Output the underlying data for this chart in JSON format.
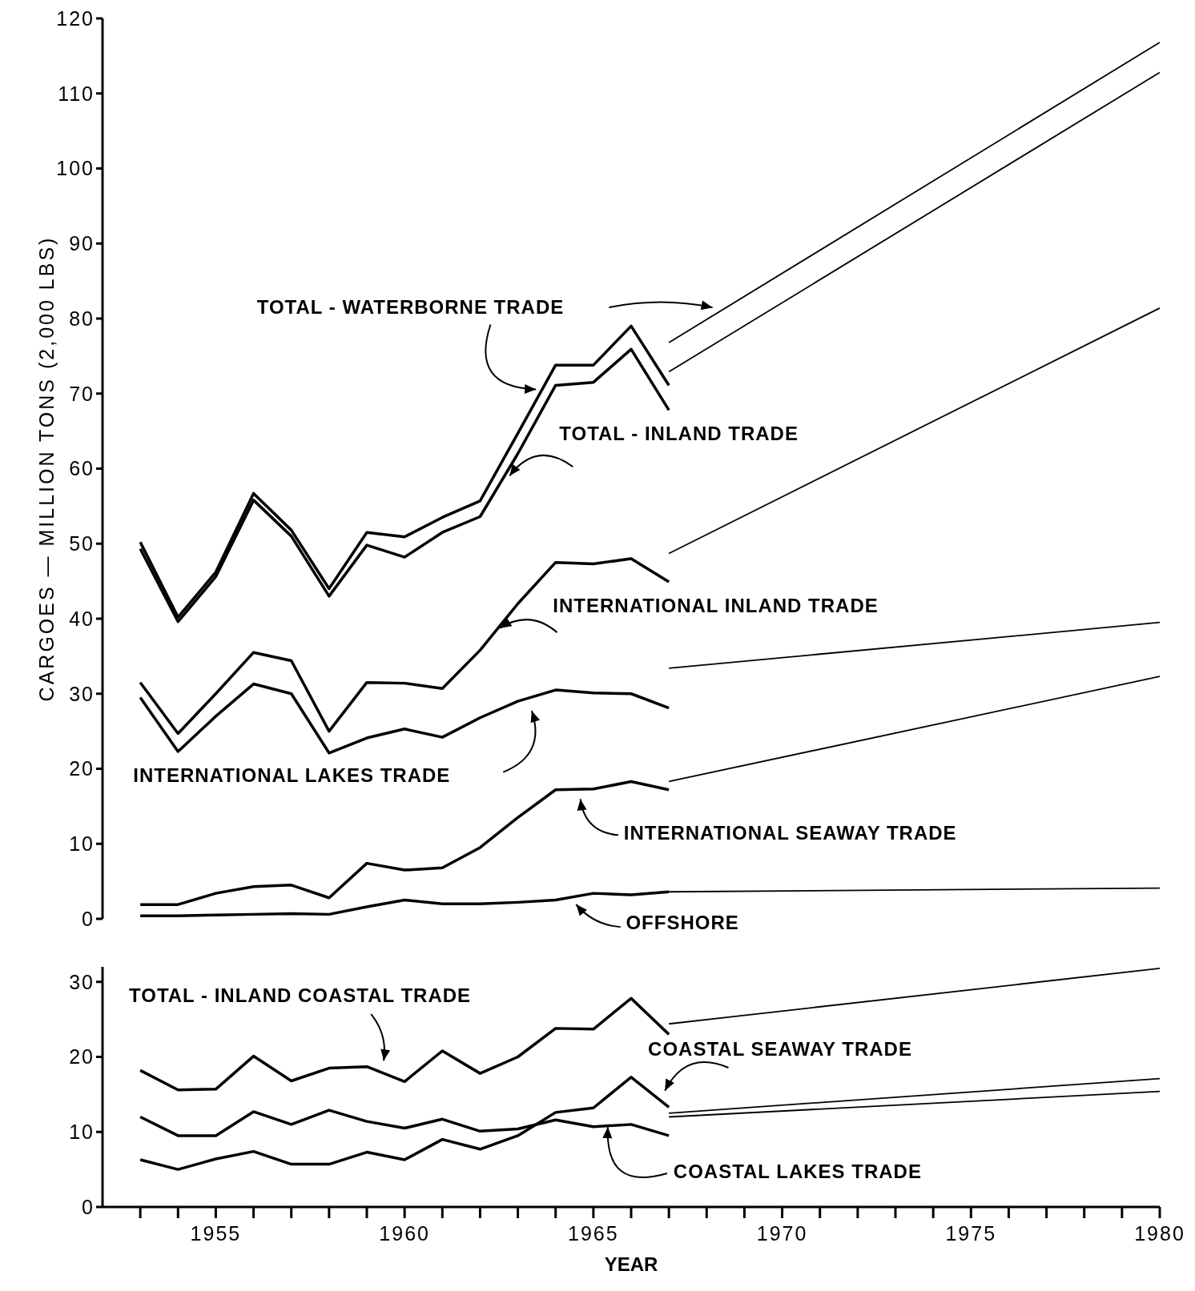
{
  "chart_data": [
    {
      "type": "line",
      "ylabel": "CARGOES — MILLION TONS (2,000 LBS)",
      "xlim": [
        1952,
        1980
      ],
      "ylim": [
        0,
        120
      ],
      "yticks": [
        0,
        10,
        20,
        30,
        40,
        50,
        60,
        70,
        80,
        90,
        100,
        110,
        120
      ],
      "tick_labels": "y",
      "marker": "none",
      "line_style": "solid",
      "series": [
        {
          "name": "TOTAL - WATERBORNE TRADE",
          "color": "#000000",
          "x": [
            1953,
            1954,
            1955,
            1956,
            1957,
            1958,
            1959,
            1960,
            1961,
            1962,
            1963,
            1964,
            1965,
            1966,
            1967
          ],
          "values": [
            50.2,
            40.2,
            46.2,
            56.7,
            51.8,
            44,
            51.5,
            50.9,
            53.5,
            55.7,
            64.7,
            73.8,
            73.8,
            79,
            71.1
          ]
        },
        {
          "color": "#000000",
          "x": [
            1967,
            1980
          ],
          "values": [
            76.8,
            116.8
          ]
        },
        {
          "name": "TOTAL - INLAND TRADE",
          "color": "#000000",
          "x": [
            1953,
            1954,
            1955,
            1956,
            1957,
            1958,
            1959,
            1960,
            1961,
            1962,
            1963,
            1964,
            1965,
            1966,
            1967
          ],
          "values": [
            49.3,
            39.6,
            45.6,
            55.8,
            51,
            43,
            49.8,
            48.2,
            51.5,
            53.6,
            62,
            71.1,
            71.5,
            75.9,
            67.8
          ]
        },
        {
          "color": "#000000",
          "x": [
            1967,
            1980
          ],
          "values": [
            72.9,
            112.8
          ]
        },
        {
          "name": "INTERNATIONAL INLAND TRADE",
          "color": "#000000",
          "x": [
            1953,
            1954,
            1955,
            1956,
            1957,
            1958,
            1959,
            1960,
            1961,
            1962,
            1963,
            1964,
            1965,
            1966,
            1967
          ],
          "values": [
            31.5,
            24.7,
            30,
            35.5,
            34.4,
            25,
            31.5,
            31.4,
            30.7,
            35.8,
            42,
            47.5,
            47.3,
            48,
            44.9
          ]
        },
        {
          "color": "#000000",
          "x": [
            1967,
            1980
          ],
          "values": [
            48.7,
            81.4
          ]
        },
        {
          "name": "INTERNATIONAL LAKES TRADE",
          "color": "#000000",
          "x": [
            1953,
            1954,
            1955,
            1956,
            1957,
            1958,
            1959,
            1960,
            1961,
            1962,
            1963,
            1964,
            1965,
            1966,
            1967
          ],
          "values": [
            29.5,
            22.3,
            27,
            31.3,
            30,
            22.1,
            24.1,
            25.3,
            24.2,
            26.8,
            29,
            30.5,
            30.1,
            30,
            28.1
          ]
        },
        {
          "color": "#000000",
          "x": [
            1967,
            1980
          ],
          "values": [
            33.4,
            39.5
          ]
        },
        {
          "name": "INTERNATIONAL SEAWAY TRADE",
          "color": "#000000",
          "x": [
            1953,
            1954,
            1955,
            1956,
            1957,
            1958,
            1959,
            1960,
            1961,
            1962,
            1963,
            1964,
            1965,
            1966,
            1967
          ],
          "values": [
            1.9,
            1.9,
            3.4,
            4.3,
            4.5,
            2.8,
            7.4,
            6.5,
            6.8,
            9.5,
            13.5,
            17.2,
            17.3,
            18.3,
            17.2
          ]
        },
        {
          "color": "#000000",
          "x": [
            1967,
            1980
          ],
          "values": [
            18.3,
            32.3
          ]
        },
        {
          "name": "OFFSHORE",
          "color": "#000000",
          "x": [
            1953,
            1954,
            1955,
            1956,
            1957,
            1958,
            1959,
            1960,
            1961,
            1962,
            1963,
            1964,
            1965,
            1966,
            1967
          ],
          "values": [
            0.4,
            0.4,
            0.5,
            0.6,
            0.7,
            0.6,
            1.6,
            2.5,
            2,
            2,
            2.2,
            2.5,
            3.4,
            3.2,
            3.6
          ]
        },
        {
          "color": "#000000",
          "x": [
            1967,
            1980
          ],
          "values": [
            3.6,
            4.1
          ]
        }
      ]
    },
    {
      "type": "line",
      "xlabel": "YEAR",
      "xlim": [
        1952,
        1980
      ],
      "ylim": [
        0,
        32
      ],
      "yticks": [
        0,
        10,
        20,
        30
      ],
      "xticks": [
        {
          "value": 1953,
          "label": null
        },
        {
          "value": 1954,
          "label": null
        },
        1955,
        {
          "value": 1956,
          "label": null
        },
        {
          "value": 1957,
          "label": null
        },
        {
          "value": 1958,
          "label": null
        },
        {
          "value": 1959,
          "label": null
        },
        1960,
        {
          "value": 1961,
          "label": null
        },
        {
          "value": 1962,
          "label": null
        },
        {
          "value": 1963,
          "label": null
        },
        {
          "value": 1964,
          "label": null
        },
        1965,
        {
          "value": 1966,
          "label": null
        },
        {
          "value": 1967,
          "label": null
        },
        {
          "value": 1968,
          "label": null
        },
        {
          "value": 1969,
          "label": null
        },
        1970,
        {
          "value": 1971,
          "label": null
        },
        {
          "value": 1972,
          "label": null
        },
        {
          "value": 1973,
          "label": null
        },
        {
          "value": 1974,
          "label": null
        },
        1975,
        {
          "value": 1976,
          "label": null
        },
        {
          "value": 1977,
          "label": null
        },
        {
          "value": 1978,
          "label": null
        },
        {
          "value": 1979,
          "label": null
        },
        1980
      ],
      "marker": "none",
      "line_style": "solid",
      "series": [
        {
          "name": "TOTAL - INLAND COASTAL TRADE",
          "color": "#000000",
          "x": [
            1953,
            1954,
            1955,
            1956,
            1957,
            1958,
            1959,
            1960,
            1961,
            1962,
            1963,
            1964,
            1965,
            1966,
            1967
          ],
          "values": [
            18.2,
            15.6,
            15.7,
            20.1,
            16.8,
            18.5,
            18.7,
            16.7,
            20.8,
            17.8,
            20,
            23.8,
            23.7,
            27.8,
            23
          ]
        },
        {
          "color": "#000000",
          "x": [
            1967,
            1980
          ],
          "values": [
            24.4,
            31.8
          ]
        },
        {
          "name": "COASTAL SEAWAY TRADE",
          "color": "#000000",
          "x": [
            1953,
            1954,
            1955,
            1956,
            1957,
            1958,
            1959,
            1960,
            1961,
            1962,
            1963,
            1964,
            1965,
            1966,
            1967
          ],
          "values": [
            6.3,
            5,
            6.4,
            7.4,
            5.7,
            5.7,
            7.3,
            6.3,
            9,
            7.7,
            9.5,
            12.6,
            13.2,
            17.3,
            13.3
          ]
        },
        {
          "color": "#000000",
          "x": [
            1967,
            1980
          ],
          "values": [
            12.5,
            17.1
          ]
        },
        {
          "name": "COASTAL LAKES TRADE",
          "color": "#000000",
          "x": [
            1953,
            1954,
            1955,
            1956,
            1957,
            1958,
            1959,
            1960,
            1961,
            1962,
            1963,
            1964,
            1965,
            1966,
            1967
          ],
          "values": [
            12,
            9.5,
            9.5,
            12.7,
            11,
            12.9,
            11.4,
            10.5,
            11.7,
            10.1,
            10.4,
            11.6,
            10.7,
            11,
            9.5
          ]
        },
        {
          "color": "#000000",
          "x": [
            1967,
            1980
          ],
          "values": [
            12,
            15.4
          ]
        }
      ]
    }
  ]
}
